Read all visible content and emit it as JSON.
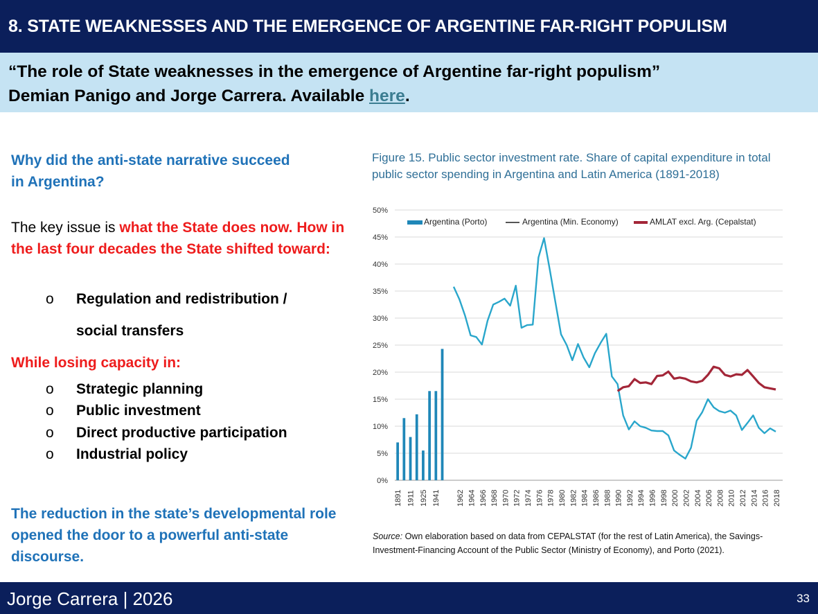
{
  "header": {
    "title": "8. STATE WEAKNESSES AND THE EMERGENCE OF ARGENTINE FAR-RIGHT POPULISM"
  },
  "citation": {
    "line1": "“The role of State weaknesses in the emergence of Argentine far-right populism”",
    "line2": "Demian Panigo and Jorge Carrera. Available ",
    "link": "here",
    "end": "."
  },
  "left": {
    "question": "Why did the anti-state narrative succeed in Argentina?",
    "key_prefix": "The key issue is ",
    "key_red": "what the State does now. How in the last four decades the State shifted toward:",
    "bullets_a": [
      "Regulation and redistribution /",
      "social transfers"
    ],
    "while": "While losing capacity in:",
    "bullets_b": [
      "Strategic planning",
      "Public investment",
      "Direct productive participation",
      "Industrial policy"
    ],
    "bullet_marker": "o",
    "conclusion": "The reduction in the state’s developmental role opened the door to a powerful anti-state discourse."
  },
  "figure": {
    "title": "Figure 15. Public sector investment rate. Share of capital expenditure in total public sector spending in Argentina and Latin America (1891-2018)",
    "source_label": "Source:",
    "source_text": " Own elaboration based on data from CEPALSTAT (for the rest of Latin America), the Savings-Investment-Financing Account of the Public Sector (Ministry of Economy), and Porto (2021)."
  },
  "footer": {
    "author": "Jorge Carrera | 2026",
    "page": "33"
  },
  "chart_data": {
    "type": "line",
    "ylim": [
      0,
      50
    ],
    "yticks": [
      "0%",
      "5%",
      "10%",
      "15%",
      "20%",
      "25%",
      "30%",
      "35%",
      "40%",
      "45%",
      "50%"
    ],
    "grid": true,
    "legend_position": "top",
    "bars": {
      "name": "Argentina (Porto)",
      "color": "#1f87b8",
      "categories": [
        "1891",
        "1901",
        "1911",
        "1921",
        "1925",
        "1931",
        "1941",
        "1945"
      ],
      "values": [
        7.0,
        11.5,
        8.0,
        12.2,
        5.5,
        16.5,
        16.5,
        24.3
      ]
    },
    "xtick_labels": [
      "1891",
      "1911",
      "1925",
      "1941",
      "1962",
      "1964",
      "1966",
      "1968",
      "1970",
      "1972",
      "1974",
      "1976",
      "1978",
      "1980",
      "1982",
      "1984",
      "1986",
      "1988",
      "1990",
      "1992",
      "1994",
      "1996",
      "1998",
      "2000",
      "2002",
      "2004",
      "2006",
      "2008",
      "2010",
      "2012",
      "2014",
      "2016",
      "2018"
    ],
    "series": [
      {
        "name": "Argentina (Min. Economy)",
        "color": "#29a6cb",
        "years": [
          1961,
          1962,
          1963,
          1964,
          1965,
          1966,
          1967,
          1968,
          1969,
          1970,
          1971,
          1972,
          1973,
          1974,
          1975,
          1976,
          1977,
          1978,
          1979,
          1980,
          1981,
          1982,
          1983,
          1984,
          1985,
          1986,
          1987,
          1988,
          1989,
          1990,
          1991,
          1992,
          1993,
          1994,
          1995,
          1996,
          1997,
          1998,
          1999,
          2000,
          2001,
          2002,
          2003,
          2004,
          2005,
          2006,
          2007,
          2008,
          2009,
          2010,
          2011,
          2012,
          2013,
          2014,
          2015,
          2016,
          2017,
          2018
        ],
        "values": [
          35.8,
          33.5,
          30.5,
          26.8,
          26.5,
          25.1,
          29.5,
          32.5,
          33.0,
          33.6,
          32.3,
          36.0,
          28.2,
          28.7,
          28.8,
          41.2,
          44.8,
          39.0,
          33.0,
          27.0,
          25.0,
          22.2,
          25.2,
          22.7,
          20.9,
          23.5,
          25.4,
          27.1,
          19.2,
          17.8,
          12.0,
          9.4,
          10.9,
          10.0,
          9.7,
          9.2,
          9.1,
          9.1,
          8.3,
          5.5,
          4.7,
          4.0,
          6.0,
          11.0,
          12.6,
          15.0,
          13.5,
          12.8,
          12.5,
          12.9,
          12.0,
          9.3,
          10.6,
          12.0,
          9.7,
          8.7,
          9.6,
          9.0
        ]
      },
      {
        "name": "AMLAT excl. Arg. (Cepalstat)",
        "color": "#a32638",
        "years": [
          1990,
          1991,
          1992,
          1993,
          1994,
          1995,
          1996,
          1997,
          1998,
          1999,
          2000,
          2001,
          2002,
          2003,
          2004,
          2005,
          2006,
          2007,
          2008,
          2009,
          2010,
          2011,
          2012,
          2013,
          2014,
          2015,
          2016,
          2017,
          2018
        ],
        "values": [
          16.5,
          17.2,
          17.4,
          18.7,
          18.0,
          18.1,
          17.8,
          19.3,
          19.4,
          20.1,
          18.8,
          19.0,
          18.8,
          18.3,
          18.1,
          18.4,
          19.5,
          21.0,
          20.7,
          19.5,
          19.2,
          19.6,
          19.5,
          20.4,
          19.2,
          18.0,
          17.2,
          17.0,
          16.8
        ]
      }
    ]
  }
}
